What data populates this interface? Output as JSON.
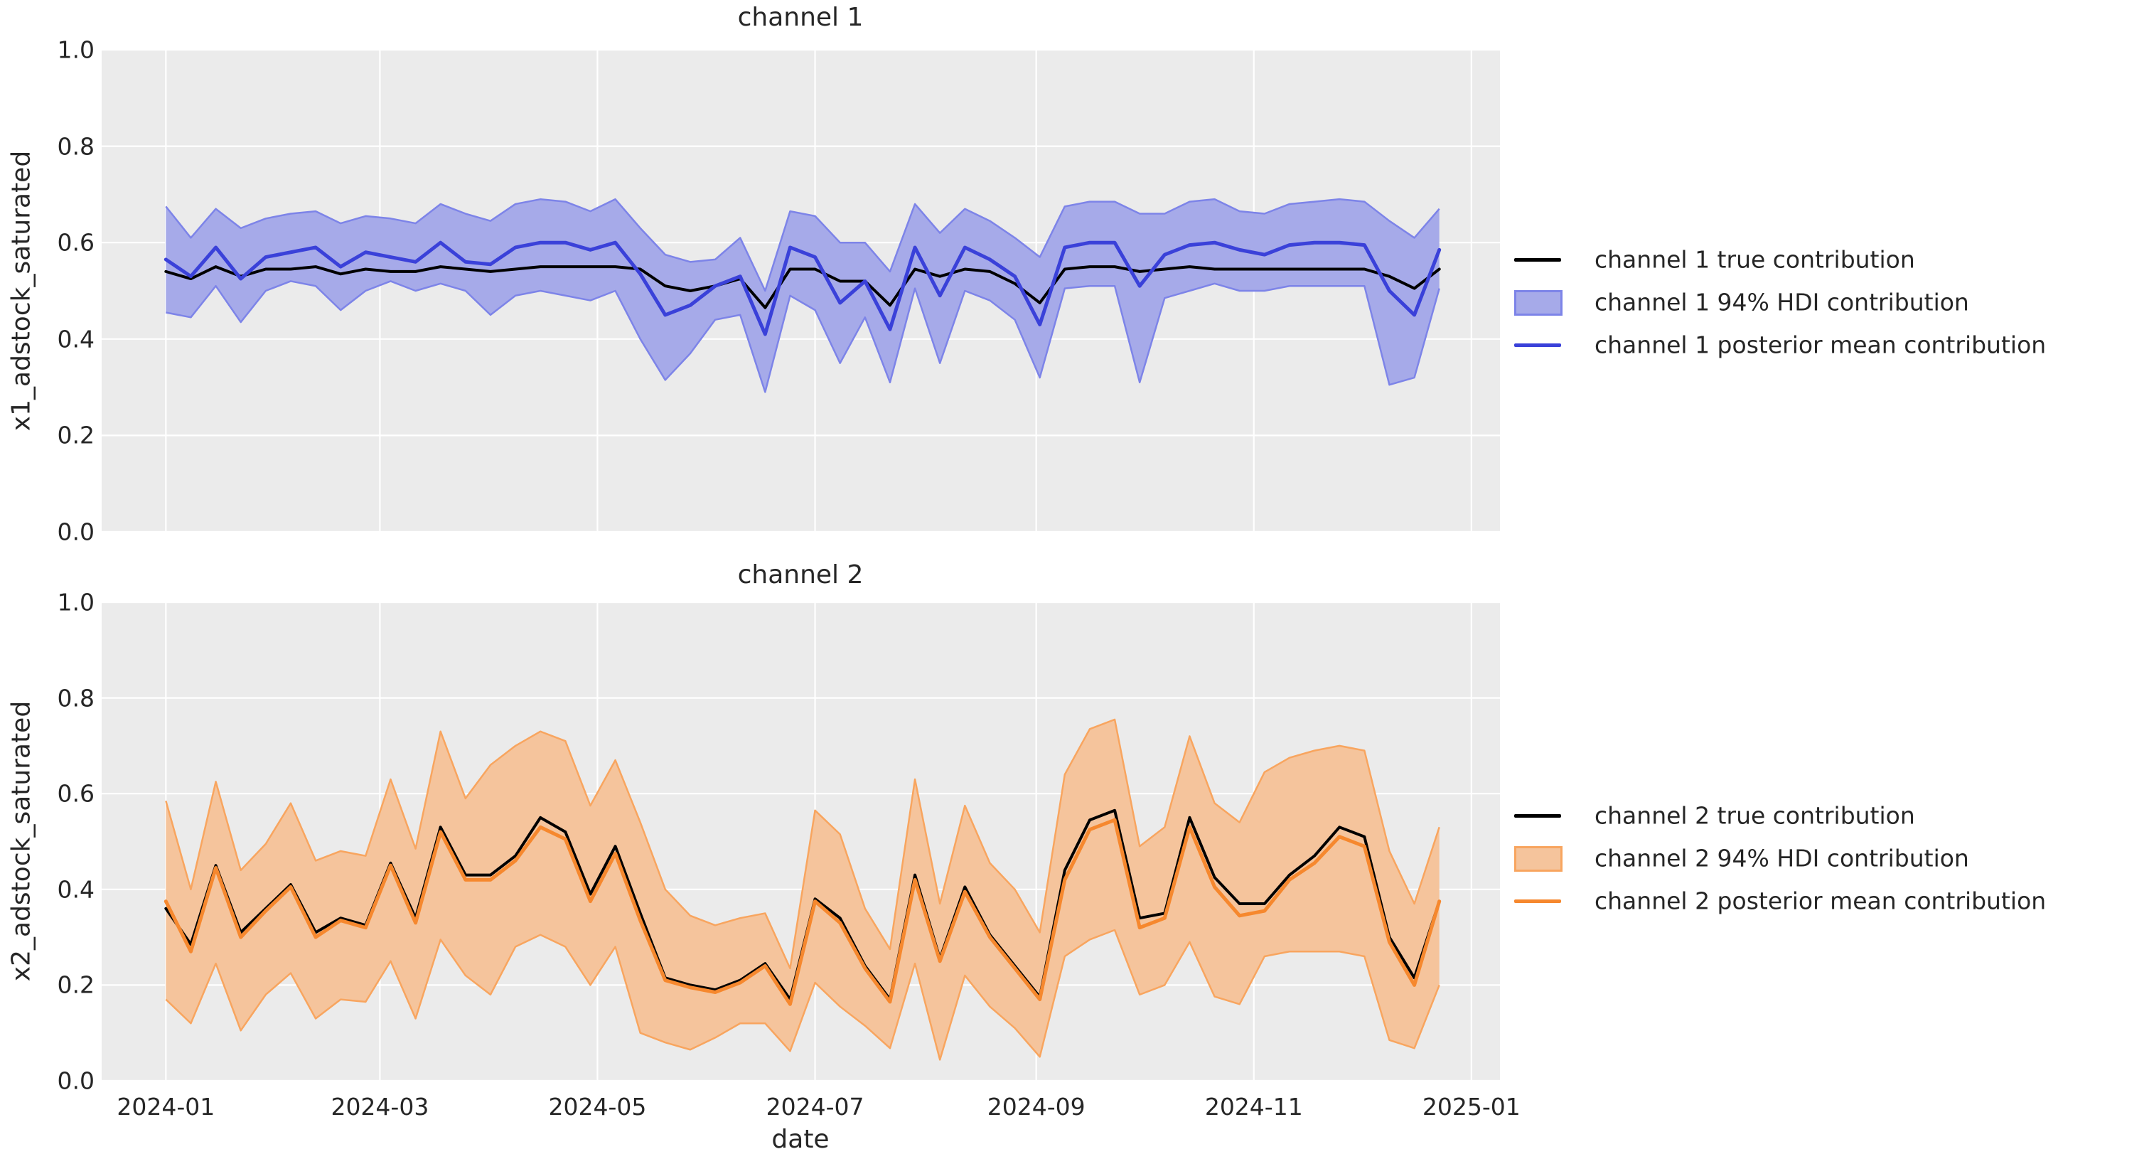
{
  "figure": {
    "background": "#ffffff",
    "axes_background": "#ebebeb",
    "grid_color": "#ffffff",
    "text_color": "#262626"
  },
  "chart_data": [
    {
      "type": "line",
      "title": "channel 1",
      "xlabel": "date",
      "ylabel": "x1_adstock_saturated",
      "ylim": [
        0.0,
        1.0
      ],
      "yticks": [
        "0.0",
        "0.2",
        "0.4",
        "0.6",
        "0.8",
        "1.0"
      ],
      "xticks": [
        "2024-01",
        "2024-03",
        "2024-05",
        "2024-07",
        "2024-09",
        "2024-11",
        "2025-01"
      ],
      "grid": true,
      "legend_position": "right",
      "x": [
        "2024-01-01",
        "2024-01-08",
        "2024-01-15",
        "2024-01-22",
        "2024-01-29",
        "2024-02-05",
        "2024-02-12",
        "2024-02-19",
        "2024-02-26",
        "2024-03-04",
        "2024-03-11",
        "2024-03-18",
        "2024-03-25",
        "2024-04-01",
        "2024-04-08",
        "2024-04-15",
        "2024-04-22",
        "2024-04-29",
        "2024-05-06",
        "2024-05-13",
        "2024-05-20",
        "2024-05-27",
        "2024-06-03",
        "2024-06-10",
        "2024-06-17",
        "2024-06-24",
        "2024-07-01",
        "2024-07-08",
        "2024-07-15",
        "2024-07-22",
        "2024-07-29",
        "2024-08-05",
        "2024-08-12",
        "2024-08-19",
        "2024-08-26",
        "2024-09-02",
        "2024-09-09",
        "2024-09-16",
        "2024-09-23",
        "2024-09-30",
        "2024-10-07",
        "2024-10-14",
        "2024-10-21",
        "2024-10-28",
        "2024-11-04",
        "2024-11-11",
        "2024-11-18",
        "2024-11-25",
        "2024-12-02",
        "2024-12-09",
        "2024-12-16",
        "2024-12-23"
      ],
      "series": [
        {
          "name": "channel 1 true contribution",
          "style": "line",
          "color": "#000000",
          "values": [
            0.54,
            0.525,
            0.55,
            0.53,
            0.545,
            0.545,
            0.55,
            0.535,
            0.545,
            0.54,
            0.54,
            0.55,
            0.545,
            0.54,
            0.545,
            0.55,
            0.55,
            0.55,
            0.55,
            0.545,
            0.51,
            0.5,
            0.51,
            0.525,
            0.465,
            0.545,
            0.545,
            0.52,
            0.52,
            0.47,
            0.545,
            0.53,
            0.545,
            0.54,
            0.515,
            0.475,
            0.545,
            0.55,
            0.55,
            0.54,
            0.545,
            0.55,
            0.545,
            0.545,
            0.545,
            0.545,
            0.545,
            0.545,
            0.545,
            0.53,
            0.505,
            0.545
          ]
        },
        {
          "name": "channel 1 94% HDI contribution",
          "style": "band",
          "fill": "#a6aae9",
          "edge": "#7d84e8",
          "low": [
            0.455,
            0.445,
            0.51,
            0.435,
            0.5,
            0.52,
            0.51,
            0.46,
            0.5,
            0.52,
            0.5,
            0.515,
            0.5,
            0.45,
            0.49,
            0.5,
            0.49,
            0.48,
            0.5,
            0.4,
            0.315,
            0.37,
            0.44,
            0.45,
            0.29,
            0.49,
            0.46,
            0.35,
            0.445,
            0.31,
            0.505,
            0.35,
            0.5,
            0.48,
            0.44,
            0.32,
            0.505,
            0.51,
            0.51,
            0.31,
            0.485,
            0.5,
            0.515,
            0.5,
            0.5,
            0.51,
            0.51,
            0.51,
            0.51,
            0.305,
            0.32,
            0.505
          ],
          "high": [
            0.675,
            0.61,
            0.67,
            0.63,
            0.65,
            0.66,
            0.665,
            0.64,
            0.655,
            0.65,
            0.64,
            0.68,
            0.66,
            0.645,
            0.68,
            0.69,
            0.685,
            0.665,
            0.69,
            0.63,
            0.575,
            0.56,
            0.565,
            0.61,
            0.5,
            0.665,
            0.655,
            0.6,
            0.6,
            0.54,
            0.68,
            0.62,
            0.67,
            0.645,
            0.61,
            0.57,
            0.675,
            0.685,
            0.685,
            0.66,
            0.66,
            0.685,
            0.69,
            0.665,
            0.66,
            0.68,
            0.685,
            0.69,
            0.685,
            0.645,
            0.61,
            0.67
          ]
        },
        {
          "name": "channel 1 posterior mean contribution",
          "style": "line",
          "color": "#3a41d9",
          "values": [
            0.565,
            0.53,
            0.59,
            0.525,
            0.57,
            0.58,
            0.59,
            0.55,
            0.58,
            0.57,
            0.56,
            0.6,
            0.56,
            0.555,
            0.59,
            0.6,
            0.6,
            0.585,
            0.6,
            0.535,
            0.45,
            0.47,
            0.51,
            0.53,
            0.41,
            0.59,
            0.57,
            0.475,
            0.52,
            0.42,
            0.59,
            0.49,
            0.59,
            0.565,
            0.53,
            0.43,
            0.59,
            0.6,
            0.6,
            0.51,
            0.575,
            0.595,
            0.6,
            0.585,
            0.575,
            0.595,
            0.6,
            0.6,
            0.595,
            0.5,
            0.45,
            0.585
          ]
        }
      ]
    },
    {
      "type": "line",
      "title": "channel 2",
      "xlabel": "date",
      "ylabel": "x2_adstock_saturated",
      "ylim": [
        0.0,
        1.0
      ],
      "yticks": [
        "0.0",
        "0.2",
        "0.4",
        "0.6",
        "0.8",
        "1.0"
      ],
      "xticks": [
        "2024-01",
        "2024-03",
        "2024-05",
        "2024-07",
        "2024-09",
        "2024-11",
        "2025-01"
      ],
      "grid": true,
      "legend_position": "right",
      "x": [
        "2024-01-01",
        "2024-01-08",
        "2024-01-15",
        "2024-01-22",
        "2024-01-29",
        "2024-02-05",
        "2024-02-12",
        "2024-02-19",
        "2024-02-26",
        "2024-03-04",
        "2024-03-11",
        "2024-03-18",
        "2024-03-25",
        "2024-04-01",
        "2024-04-08",
        "2024-04-15",
        "2024-04-22",
        "2024-04-29",
        "2024-05-06",
        "2024-05-13",
        "2024-05-20",
        "2024-05-27",
        "2024-06-03",
        "2024-06-10",
        "2024-06-17",
        "2024-06-24",
        "2024-07-01",
        "2024-07-08",
        "2024-07-15",
        "2024-07-22",
        "2024-07-29",
        "2024-08-05",
        "2024-08-12",
        "2024-08-19",
        "2024-08-26",
        "2024-09-02",
        "2024-09-09",
        "2024-09-16",
        "2024-09-23",
        "2024-09-30",
        "2024-10-07",
        "2024-10-14",
        "2024-10-21",
        "2024-10-28",
        "2024-11-04",
        "2024-11-11",
        "2024-11-18",
        "2024-11-25",
        "2024-12-02",
        "2024-12-09",
        "2024-12-16",
        "2024-12-23"
      ],
      "series": [
        {
          "name": "channel 2 true contribution",
          "style": "line",
          "color": "#000000",
          "values": [
            0.36,
            0.285,
            0.45,
            0.31,
            0.36,
            0.41,
            0.31,
            0.34,
            0.325,
            0.455,
            0.34,
            0.53,
            0.43,
            0.43,
            0.47,
            0.55,
            0.52,
            0.39,
            0.49,
            0.35,
            0.215,
            0.2,
            0.19,
            0.21,
            0.245,
            0.17,
            0.38,
            0.34,
            0.24,
            0.17,
            0.43,
            0.255,
            0.405,
            0.305,
            0.24,
            0.175,
            0.44,
            0.545,
            0.565,
            0.34,
            0.35,
            0.55,
            0.425,
            0.37,
            0.37,
            0.43,
            0.47,
            0.53,
            0.51,
            0.3,
            0.215,
            0.375
          ]
        },
        {
          "name": "channel 2 94% HDI contribution",
          "style": "band",
          "fill": "#f5c49c",
          "edge": "#f8a55f",
          "low": [
            0.17,
            0.12,
            0.245,
            0.105,
            0.18,
            0.225,
            0.13,
            0.17,
            0.165,
            0.25,
            0.13,
            0.295,
            0.22,
            0.18,
            0.28,
            0.305,
            0.28,
            0.2,
            0.28,
            0.1,
            0.08,
            0.065,
            0.09,
            0.12,
            0.12,
            0.062,
            0.205,
            0.155,
            0.115,
            0.068,
            0.245,
            0.044,
            0.22,
            0.155,
            0.11,
            0.05,
            0.26,
            0.295,
            0.315,
            0.18,
            0.2,
            0.29,
            0.176,
            0.16,
            0.26,
            0.27,
            0.27,
            0.27,
            0.26,
            0.085,
            0.068,
            0.2
          ],
          "high": [
            0.585,
            0.4,
            0.625,
            0.44,
            0.495,
            0.58,
            0.46,
            0.48,
            0.47,
            0.63,
            0.485,
            0.73,
            0.59,
            0.66,
            0.7,
            0.73,
            0.71,
            0.575,
            0.67,
            0.54,
            0.4,
            0.345,
            0.325,
            0.34,
            0.35,
            0.235,
            0.565,
            0.515,
            0.36,
            0.275,
            0.63,
            0.37,
            0.575,
            0.455,
            0.4,
            0.31,
            0.64,
            0.735,
            0.755,
            0.49,
            0.53,
            0.72,
            0.58,
            0.54,
            0.645,
            0.675,
            0.69,
            0.7,
            0.69,
            0.48,
            0.37,
            0.53
          ]
        },
        {
          "name": "channel 2 posterior mean contribution",
          "style": "line",
          "color": "#f6882e",
          "values": [
            0.375,
            0.27,
            0.445,
            0.3,
            0.355,
            0.405,
            0.3,
            0.335,
            0.32,
            0.45,
            0.33,
            0.52,
            0.42,
            0.42,
            0.46,
            0.53,
            0.505,
            0.375,
            0.475,
            0.335,
            0.21,
            0.195,
            0.185,
            0.205,
            0.24,
            0.16,
            0.375,
            0.33,
            0.235,
            0.165,
            0.42,
            0.25,
            0.395,
            0.3,
            0.235,
            0.17,
            0.42,
            0.525,
            0.545,
            0.32,
            0.34,
            0.53,
            0.405,
            0.345,
            0.355,
            0.42,
            0.455,
            0.51,
            0.49,
            0.29,
            0.2,
            0.375
          ]
        }
      ]
    }
  ]
}
